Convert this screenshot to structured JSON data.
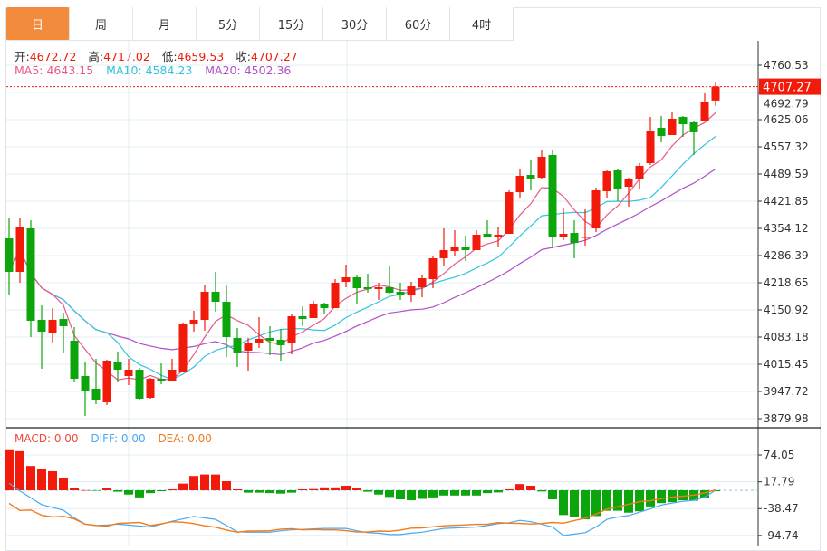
{
  "tabs": [
    {
      "label": "日",
      "active": true
    },
    {
      "label": "周"
    },
    {
      "label": "月"
    },
    {
      "label": "5分"
    },
    {
      "label": "15分"
    },
    {
      "label": "30分"
    },
    {
      "label": "60分"
    },
    {
      "label": "4时"
    }
  ],
  "ohlc_info": {
    "open_label": "开:",
    "open": "4672.72",
    "high_label": "高:",
    "high": "4717.02",
    "low_label": "低:",
    "low": "4659.53",
    "close_label": "收:",
    "close": "4707.27"
  },
  "ma_info": {
    "ma5": "MA5: 4643.15",
    "ma10": "MA10: 4584.23",
    "ma20": "MA20: 4502.36"
  },
  "macd_info": {
    "macd": "MACD: 0.00",
    "diff": "DIFF: 0.00",
    "dea": "DEA: 0.00"
  },
  "current_price": "4707.27",
  "colors": {
    "up": "#f21a0a",
    "down": "#0ca60c",
    "ma5": "#e8588a",
    "ma10": "#33c3de",
    "ma20": "#b150c8",
    "diff": "#4aa8f0",
    "dea": "#f27a1a",
    "active_tab": "#f28c3c"
  },
  "chart_data": [
    {
      "type": "candlestick",
      "ylim": [
        3879.98,
        4760.53
      ],
      "y_ticks": [
        "4760.53",
        "4692.79",
        "4625.06",
        "4557.32",
        "4489.59",
        "4421.85",
        "4354.12",
        "4286.39",
        "4218.65",
        "4150.92",
        "4083.18",
        "4015.45",
        "3947.72",
        "3879.98"
      ],
      "ohlc": [
        [
          4329.3,
          4379.0,
          4187.1,
          4245.8
        ],
        [
          4245.8,
          4381.2,
          4218.7,
          4356.4
        ],
        [
          4354.1,
          4374.4,
          4083.2,
          4123.8
        ],
        [
          4126.1,
          4162.2,
          4004.2,
          4096.7
        ],
        [
          4094.5,
          4155.4,
          4067.4,
          4126.1
        ],
        [
          4128.3,
          4144.2,
          4044.8,
          4110.3
        ],
        [
          4074.2,
          4108.0,
          3970.3,
          3979.3
        ],
        [
          3986.1,
          4020.0,
          3886.8,
          3950.0
        ],
        [
          3954.5,
          4029.0,
          3916.1,
          3927.4
        ],
        [
          3920.6,
          4026.7,
          3913.9,
          4024.5
        ],
        [
          4022.2,
          4047.1,
          3972.6,
          4001.9
        ],
        [
          3986.1,
          4029.0,
          3963.5,
          4001.9
        ],
        [
          4001.9,
          4006.4,
          3927.4,
          3929.7
        ],
        [
          3931.9,
          3981.6,
          3929.7,
          3979.3
        ],
        [
          3979.3,
          4017.7,
          3965.8,
          3974.8
        ],
        [
          3974.8,
          4029.0,
          3974.8,
          4001.9
        ],
        [
          3997.4,
          4119.4,
          3995.2,
          4117.1
        ],
        [
          4114.8,
          4148.7,
          4096.7,
          4126.1
        ],
        [
          4126.1,
          4211.9,
          4099.0,
          4196.1
        ],
        [
          4196.1,
          4245.8,
          4146.4,
          4171.2
        ],
        [
          4171.2,
          4211.9,
          4033.5,
          4083.2
        ],
        [
          4080.9,
          4105.8,
          4008.7,
          4044.8
        ],
        [
          4049.3,
          4080.9,
          3999.7,
          4067.4
        ],
        [
          4067.4,
          4132.9,
          4056.1,
          4078.7
        ],
        [
          4080.9,
          4110.3,
          4038.0,
          4074.2
        ],
        [
          4076.4,
          4103.5,
          4024.5,
          4062.9
        ],
        [
          4069.6,
          4139.6,
          4040.3,
          4135.1
        ],
        [
          4135.1,
          4160.0,
          4110.3,
          4128.3
        ],
        [
          4130.6,
          4173.5,
          4130.6,
          4164.5
        ],
        [
          4164.5,
          4169.0,
          4141.9,
          4155.4
        ],
        [
          4155.4,
          4227.7,
          4155.4,
          4218.7
        ],
        [
          4220.9,
          4263.8,
          4207.4,
          4232.2
        ],
        [
          4232.2,
          4236.7,
          4164.5,
          4205.1
        ],
        [
          4207.4,
          4241.2,
          4193.8,
          4202.9
        ],
        [
          4202.9,
          4218.7,
          4175.8,
          4207.4
        ],
        [
          4207.4,
          4259.3,
          4191.6,
          4193.8
        ],
        [
          4196.1,
          4218.7,
          4175.8,
          4189.3
        ],
        [
          4189.3,
          4220.9,
          4171.2,
          4209.6
        ],
        [
          4207.4,
          4239.0,
          4182.5,
          4229.9
        ],
        [
          4227.7,
          4284.1,
          4205.1,
          4279.6
        ],
        [
          4279.6,
          4354.1,
          4259.3,
          4299.9
        ],
        [
          4297.7,
          4349.6,
          4284.1,
          4306.7
        ],
        [
          4306.7,
          4336.1,
          4272.8,
          4299.9
        ],
        [
          4299.9,
          4349.6,
          4299.9,
          4338.3
        ],
        [
          4340.6,
          4374.4,
          4331.6,
          4331.6
        ],
        [
          4331.6,
          4356.4,
          4309.0,
          4338.3
        ],
        [
          4340.6,
          4449.0,
          4340.6,
          4444.4
        ],
        [
          4444.4,
          4500.9,
          4430.9,
          4485.1
        ],
        [
          4487.3,
          4525.7,
          4449.0,
          4478.3
        ],
        [
          4480.6,
          4550.6,
          4476.1,
          4532.5
        ],
        [
          4537.0,
          4550.6,
          4304.5,
          4331.6
        ],
        [
          4333.8,
          4403.8,
          4324.8,
          4340.6
        ],
        [
          4342.8,
          4374.4,
          4279.6,
          4318.0
        ],
        [
          4331.6,
          4401.5,
          4311.2,
          4333.8
        ],
        [
          4354.1,
          4455.7,
          4345.1,
          4449.0
        ],
        [
          4446.7,
          4498.6,
          4428.6,
          4496.4
        ],
        [
          4498.6,
          4500.9,
          4421.9,
          4453.5
        ],
        [
          4458.0,
          4480.6,
          4408.3,
          4478.3
        ],
        [
          4478.3,
          4516.7,
          4453.5,
          4509.9
        ],
        [
          4516.7,
          4631.8,
          4512.2,
          4598.0
        ],
        [
          4604.7,
          4634.1,
          4568.6,
          4584.4
        ],
        [
          4586.7,
          4643.1,
          4586.7,
          4627.3
        ],
        [
          4631.8,
          4634.1,
          4582.2,
          4613.8
        ],
        [
          4618.3,
          4620.5,
          4537.0,
          4593.5
        ],
        [
          4622.8,
          4690.5,
          4622.8,
          4670.2
        ],
        [
          4672.72,
          4717.02,
          4659.53,
          4707.27
        ]
      ],
      "moving_averages": [
        "MA5",
        "MA10",
        "MA20"
      ]
    },
    {
      "type": "bar+line",
      "y_ticks": [
        "74.05",
        "17.79",
        "-38.47",
        "-94.74"
      ],
      "y_tick_values": [
        74.05,
        17.79,
        -38.47,
        -94.74
      ],
      "macd": [
        84,
        82,
        51,
        45,
        40,
        25,
        4,
        0.3,
        -0.5,
        4,
        -3,
        -9,
        -15,
        -6,
        -1,
        2,
        14,
        30,
        33,
        33,
        19,
        2,
        -5,
        -5,
        -6,
        -7,
        -5,
        2,
        2.5,
        6,
        6,
        9.5,
        5,
        -3,
        -9,
        -14,
        -19,
        -21,
        -18,
        -15,
        -11,
        -11,
        -11,
        -11,
        -6,
        -4.5,
        2,
        13,
        9.5,
        -2.5,
        -19,
        -52,
        -57,
        -61,
        -54,
        -43,
        -43,
        -47,
        -44,
        -34,
        -27,
        -25,
        -21,
        -22,
        -17,
        -1.5
      ],
      "diff": [
        14.6,
        -1.3,
        -16,
        -30,
        -36,
        -42,
        -58,
        -71,
        -74,
        -73,
        -71,
        -73,
        -75,
        -77,
        -71,
        -65,
        -60,
        -55,
        -58,
        -61,
        -74,
        -87,
        -88,
        -88,
        -88,
        -85,
        -83,
        -82,
        -81,
        -80,
        -80,
        -80,
        -85,
        -89,
        -90,
        -93,
        -93,
        -90,
        -88,
        -84,
        -80,
        -79,
        -78,
        -77,
        -74,
        -70,
        -68,
        -63,
        -66,
        -71,
        -77,
        -95,
        -92,
        -89,
        -77,
        -61,
        -56,
        -53,
        -46,
        -39,
        -31,
        -27,
        -23,
        -21,
        -14,
        0
      ]
    }
  ]
}
